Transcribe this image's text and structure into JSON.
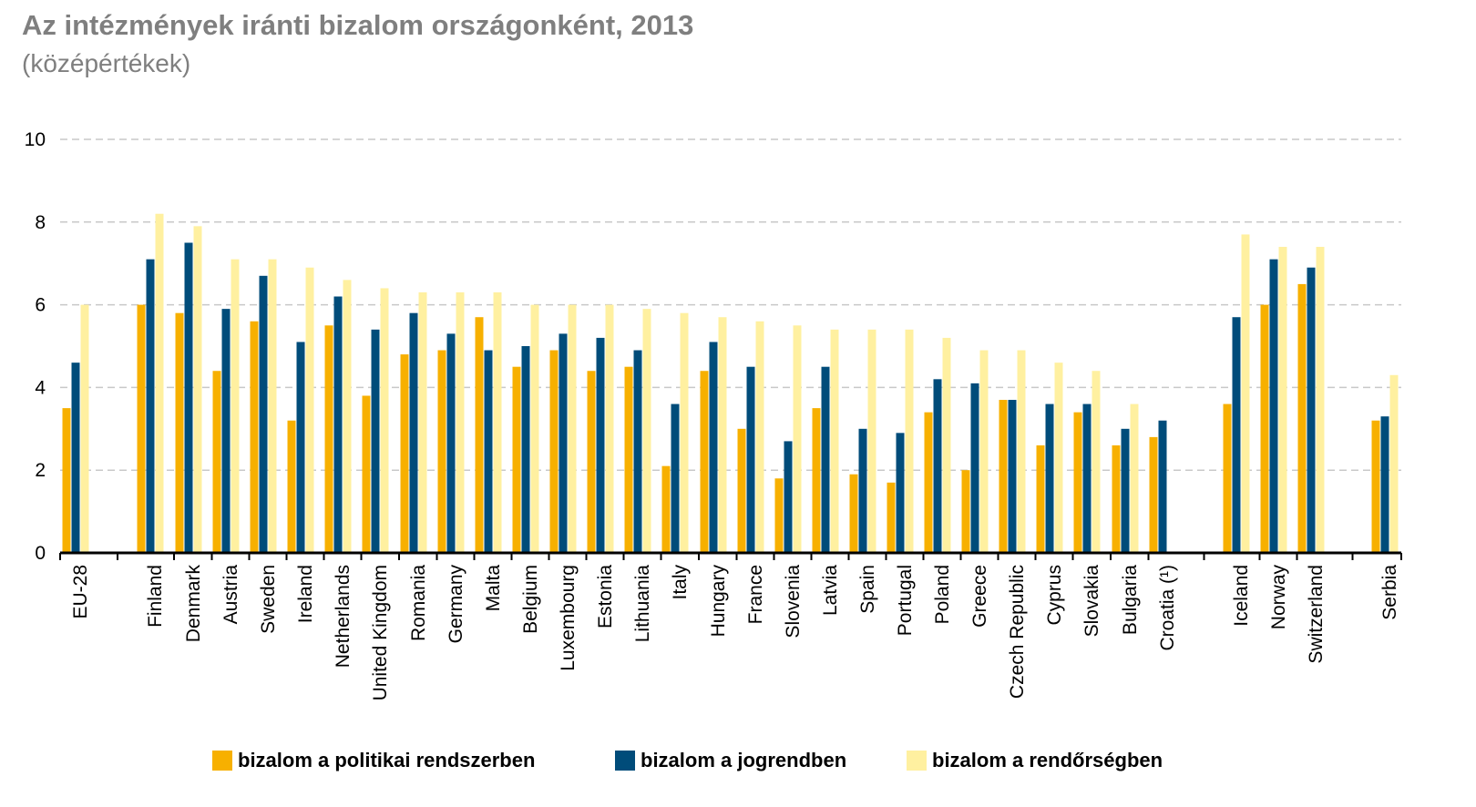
{
  "chart_data": {
    "type": "bar",
    "title": "Az intézmények iránti bizalom országonként, 2013",
    "subtitle": "(középértékek)",
    "ylim": [
      0,
      10
    ],
    "yticks": [
      0,
      2,
      4,
      6,
      8,
      10
    ],
    "grid": true,
    "legend_position": "bottom",
    "categories": [
      "EU-28",
      "Finland",
      "Denmark",
      "Austria",
      "Sweden",
      "Ireland",
      "Netherlands",
      "United Kingdom",
      "Romania",
      "Germany",
      "Malta",
      "Belgium",
      "Luxembourg",
      "Estonia",
      "Lithuania",
      "Italy",
      "Hungary",
      "France",
      "Slovenia",
      "Latvia",
      "Spain",
      "Portugal",
      "Poland",
      "Greece",
      "Czech Republic",
      "Cyprus",
      "Slovakia",
      "Bulgaria",
      "Croatia (¹)",
      "Iceland",
      "Norway",
      "Switzerland",
      "Serbia"
    ],
    "series": [
      {
        "name": "bizalom a politikai rendszerben",
        "color": "#f7b000",
        "values": [
          3.5,
          6.0,
          5.8,
          4.4,
          5.6,
          3.2,
          5.5,
          3.8,
          4.8,
          4.9,
          5.7,
          4.5,
          4.9,
          4.4,
          4.5,
          2.1,
          4.4,
          3.0,
          1.8,
          3.5,
          1.9,
          1.7,
          3.4,
          2.0,
          3.7,
          2.6,
          3.4,
          2.6,
          2.8,
          3.6,
          6.0,
          6.5,
          3.2
        ]
      },
      {
        "name": "bizalom a jogrendben",
        "color": "#004c7a",
        "values": [
          4.6,
          7.1,
          7.5,
          5.9,
          6.7,
          5.1,
          6.2,
          5.4,
          5.8,
          5.3,
          4.9,
          5.0,
          5.3,
          5.2,
          4.9,
          3.6,
          5.1,
          4.5,
          2.7,
          4.5,
          3.0,
          2.9,
          4.2,
          4.1,
          3.7,
          3.6,
          3.6,
          3.0,
          3.2,
          5.7,
          7.1,
          6.9,
          3.3
        ]
      },
      {
        "name": "bizalom a rendőrségben",
        "color": "#fff0a0",
        "values": [
          6.0,
          8.2,
          7.9,
          7.1,
          7.1,
          6.9,
          6.6,
          6.4,
          6.3,
          6.3,
          6.3,
          6.0,
          6.0,
          6.0,
          5.9,
          5.8,
          5.7,
          5.6,
          5.5,
          5.4,
          5.4,
          5.4,
          5.2,
          4.9,
          4.9,
          4.6,
          4.4,
          3.6,
          null,
          7.7,
          7.4,
          7.4,
          4.3
        ]
      }
    ]
  }
}
